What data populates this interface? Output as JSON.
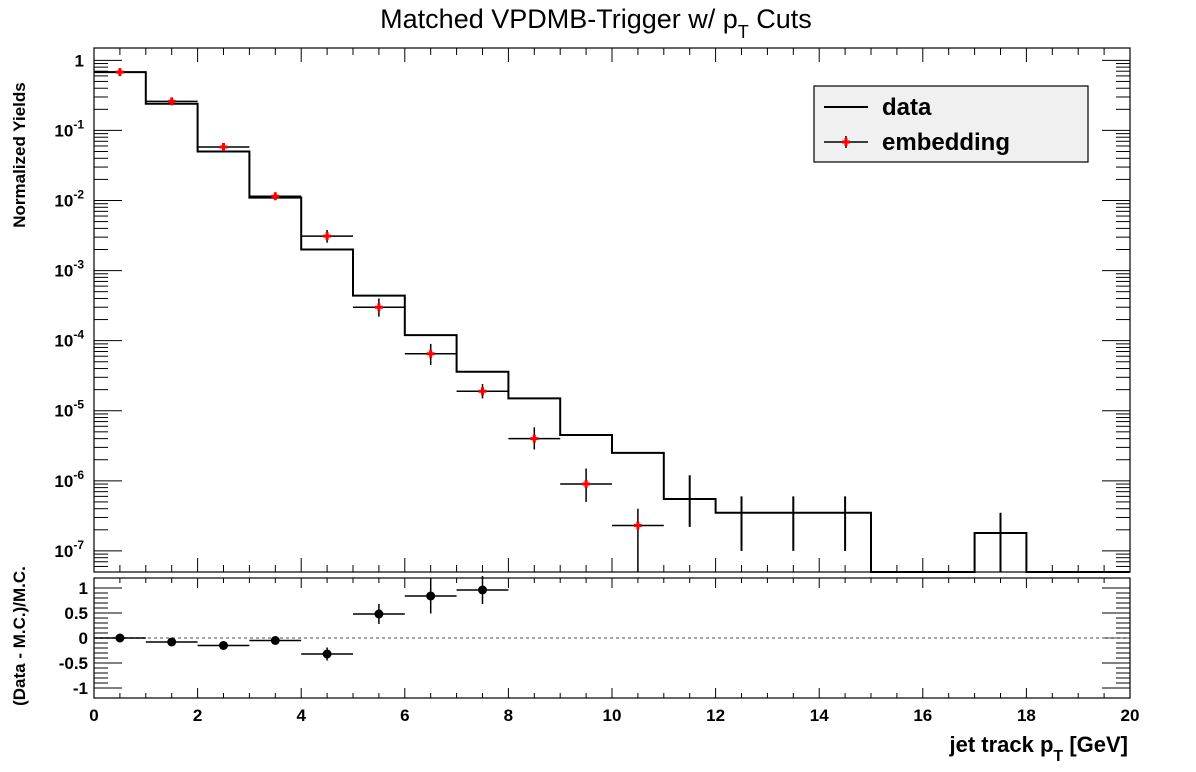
{
  "chart_data": {
    "type": "step-histogram",
    "title_main": "Matched VPDMB-Trigger w/ p",
    "title_sub": "T",
    "title_end": " Cuts",
    "xlabel_main": "jet track p",
    "xlabel_sub": "T",
    "xlabel_end": " [GeV]",
    "xlim": [
      0,
      20
    ],
    "x_ticks": [
      "0",
      "2",
      "4",
      "6",
      "8",
      "10",
      "12",
      "14",
      "16",
      "18",
      "20"
    ],
    "top": {
      "ylabel": "Normalized Yields",
      "yscale": "log",
      "ylim": [
        5e-08,
        1.5
      ],
      "y_ticks": [
        {
          "base": "1",
          "exp": ""
        },
        {
          "base": "10",
          "exp": "-1"
        },
        {
          "base": "10",
          "exp": "-2"
        },
        {
          "base": "10",
          "exp": "-3"
        },
        {
          "base": "10",
          "exp": "-4"
        },
        {
          "base": "10",
          "exp": "-5"
        },
        {
          "base": "10",
          "exp": "-6"
        },
        {
          "base": "10",
          "exp": "-7"
        }
      ],
      "series": [
        {
          "name": "data",
          "style": "step",
          "color": "#000000",
          "bin_edges": [
            0,
            1,
            2,
            3,
            4,
            5,
            6,
            7,
            8,
            9,
            10,
            11,
            12,
            13,
            14,
            15,
            16,
            17,
            18,
            19,
            20
          ],
          "values": [
            0.68,
            0.24,
            0.05,
            0.011,
            0.002,
            0.00044,
            0.00012,
            3.6e-05,
            1.5e-05,
            4.5e-06,
            2.5e-06,
            5.5e-07,
            3.5e-07,
            3.5e-07,
            3.5e-07,
            5e-08,
            5e-08,
            1.8e-07,
            5e-08,
            5e-08
          ],
          "error_bars": [
            {
              "x": 11.5,
              "low": 2.2e-07,
              "high": 1.2e-06
            },
            {
              "x": 12.5,
              "low": 1e-07,
              "high": 6e-07
            },
            {
              "x": 13.5,
              "low": 1e-07,
              "high": 6e-07
            },
            {
              "x": 14.5,
              "low": 1e-07,
              "high": 6e-07
            },
            {
              "x": 17.5,
              "low": 5e-08,
              "high": 3.5e-07
            }
          ]
        },
        {
          "name": "embedding",
          "style": "points",
          "color": "#ff0000",
          "points": [
            {
              "x": 0.5,
              "y": 0.68,
              "low": 0.6,
              "high": 0.75
            },
            {
              "x": 1.5,
              "y": 0.26,
              "low": 0.23,
              "high": 0.29
            },
            {
              "x": 2.5,
              "y": 0.058,
              "low": 0.05,
              "high": 0.066
            },
            {
              "x": 3.5,
              "y": 0.0115,
              "low": 0.0103,
              "high": 0.0128
            },
            {
              "x": 4.5,
              "y": 0.0031,
              "low": 0.0025,
              "high": 0.0038
            },
            {
              "x": 5.5,
              "y": 0.0003,
              "low": 0.00022,
              "high": 0.0004
            },
            {
              "x": 6.5,
              "y": 6.5e-05,
              "low": 4.5e-05,
              "high": 9e-05
            },
            {
              "x": 7.5,
              "y": 1.9e-05,
              "low": 1.5e-05,
              "high": 2.4e-05
            },
            {
              "x": 8.5,
              "y": 4e-06,
              "low": 2.8e-06,
              "high": 5.8e-06
            },
            {
              "x": 9.5,
              "y": 9e-07,
              "low": 5e-07,
              "high": 1.5e-06
            },
            {
              "x": 10.5,
              "y": 2.3e-07,
              "low": 5e-08,
              "high": 4e-07
            }
          ]
        }
      ]
    },
    "bottom": {
      "ylabel": "(Data - M.C.)/M.C.",
      "ylim": [
        -1.2,
        1.2
      ],
      "y_ticks": [
        "1",
        "0.5",
        "0",
        "-0.5",
        "-1"
      ],
      "y_tick_values": [
        1,
        0.5,
        0,
        -0.5,
        -1
      ],
      "reference_line": 0,
      "points": [
        {
          "x": 0.5,
          "y": 0.0,
          "err": 0.03
        },
        {
          "x": 1.5,
          "y": -0.08,
          "err": 0.03
        },
        {
          "x": 2.5,
          "y": -0.15,
          "err": 0.03
        },
        {
          "x": 3.5,
          "y": -0.05,
          "err": 0.04
        },
        {
          "x": 4.5,
          "y": -0.32,
          "err": 0.13
        },
        {
          "x": 5.5,
          "y": 0.48,
          "err": 0.2
        },
        {
          "x": 6.5,
          "y": 0.84,
          "err": 0.35
        },
        {
          "x": 7.5,
          "y": 0.96,
          "err": 0.28
        }
      ]
    },
    "legend": {
      "placement": "top-right",
      "entries": [
        {
          "label": "data",
          "marker": "line"
        },
        {
          "label": "embedding",
          "marker": "cross"
        }
      ]
    }
  }
}
